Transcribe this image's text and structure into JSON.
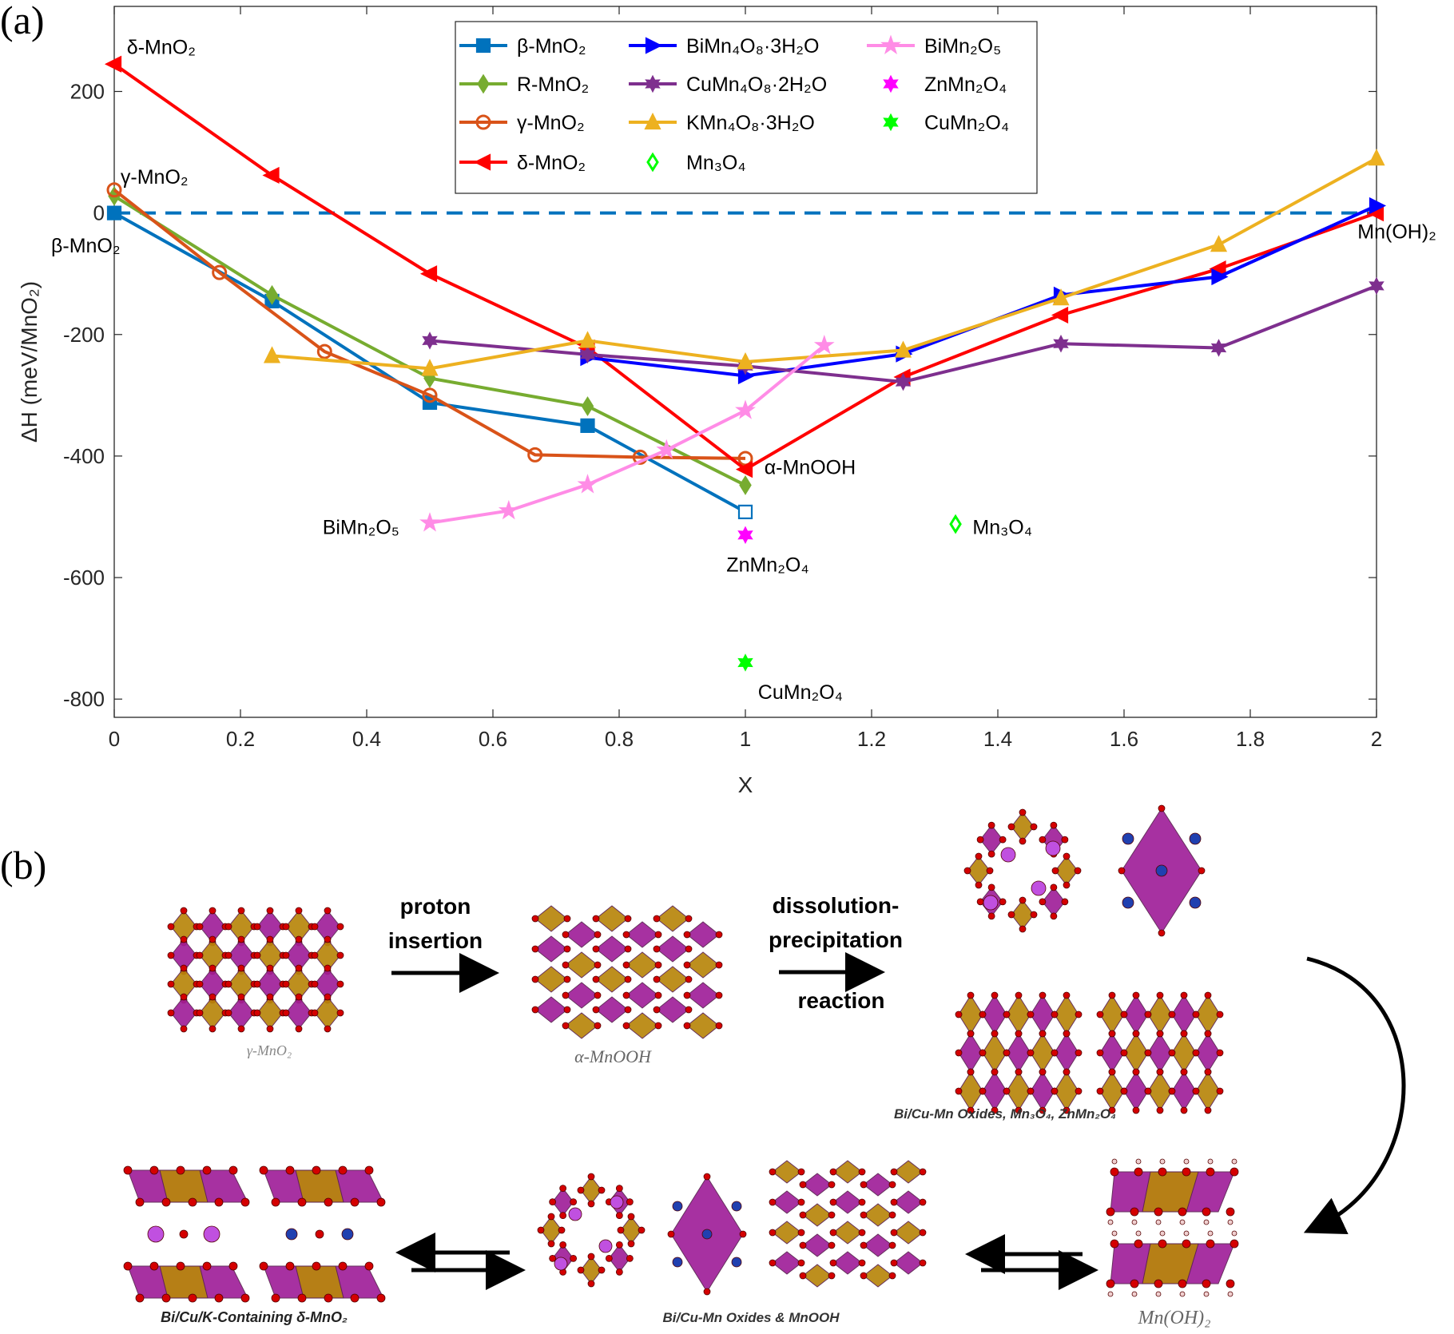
{
  "panel_a_label": "(a)",
  "panel_b_label": "(b)",
  "chart_data": {
    "type": "line",
    "xlabel": "X",
    "ylabel": "ΔH (meV/MnO₂)",
    "xlim": [
      0,
      2
    ],
    "ylim": [
      -830,
      340
    ],
    "xticks": [
      0,
      0.2,
      0.4,
      0.6,
      0.8,
      1,
      1.2,
      1.4,
      1.6,
      1.8,
      2
    ],
    "xtick_labels": [
      "0",
      "0.2",
      "0.4",
      "0.6",
      "0.8",
      "1",
      "1.2",
      "1.4",
      "1.6",
      "1.8",
      "2"
    ],
    "yticks": [
      200,
      0,
      -200,
      -400,
      -600,
      -800
    ],
    "ytick_labels": [
      "200",
      "0",
      "-200",
      "-400",
      "-600",
      "-800"
    ],
    "grid": false,
    "legend_position": "top-center",
    "reference_line": {
      "y": 0,
      "style": "dashed",
      "color": "#0072BD"
    },
    "series": [
      {
        "name": "β-MnO₂",
        "color": "#0072BD",
        "marker": "square",
        "x": [
          0,
          0.25,
          0.5,
          0.75,
          1
        ],
        "y": [
          0,
          -145,
          -312,
          -350,
          -492
        ],
        "open_last": true
      },
      {
        "name": "R-MnO₂",
        "color": "#77AC30",
        "marker": "diamond",
        "x": [
          0,
          0.25,
          0.5,
          0.75,
          1
        ],
        "y": [
          28,
          -135,
          -272,
          -318,
          -448
        ],
        "open_last": false
      },
      {
        "name": "γ-MnO₂",
        "color": "#D95319",
        "marker": "circle",
        "x": [
          0,
          0.1667,
          0.3333,
          0.5,
          0.6667,
          0.8333,
          1
        ],
        "y": [
          38,
          -98,
          -228,
          -300,
          -398,
          -402,
          -404
        ],
        "open_last": false
      },
      {
        "name": "δ-MnO₂",
        "color": "#FF0000",
        "marker": "triangle-left",
        "x": [
          0,
          0.25,
          0.5,
          0.75,
          1,
          1.25,
          1.5,
          1.75,
          2
        ],
        "y": [
          245,
          62,
          -100,
          -222,
          -422,
          -270,
          -168,
          -92,
          0
        ],
        "open_last": false
      },
      {
        "name": "BiMn₄O₈·3H₂O",
        "color": "#0000FF",
        "marker": "triangle-right",
        "x": [
          0.75,
          1,
          1.25,
          1.5,
          1.75,
          2
        ],
        "y": [
          -238,
          -268,
          -232,
          -135,
          -105,
          12
        ],
        "open_last": false
      },
      {
        "name": "CuMn₄O₈·2H₂O",
        "color": "#7E2F8E",
        "marker": "hexagram",
        "x": [
          0.5,
          0.75,
          1,
          1.25,
          1.5,
          1.75,
          2
        ],
        "y": [
          -210,
          -233,
          -252,
          -278,
          -215,
          -222,
          -120
        ],
        "open_last": false
      },
      {
        "name": "KMn₄O₈·3H₂O",
        "color": "#EDB120",
        "marker": "triangle-up",
        "x": [
          0.25,
          0.5,
          0.75,
          1,
          1.25,
          1.5,
          1.75,
          2
        ],
        "y": [
          -235,
          -256,
          -210,
          -245,
          -226,
          -140,
          -52,
          90
        ],
        "open_last": false
      },
      {
        "name": "BiMn₂O₅",
        "color": "#FF8CE6",
        "marker": "pentagram",
        "x": [
          0.5,
          0.625,
          0.75,
          0.875,
          1,
          1.125
        ],
        "y": [
          -510,
          -490,
          -447,
          -390,
          -325,
          -218
        ],
        "open_last": false
      },
      {
        "name": "ZnMn₂O₄",
        "color": "#FF00FF",
        "marker": "hexagram",
        "x": [
          1
        ],
        "y": [
          -530
        ],
        "open_last": false
      },
      {
        "name": "CuMn₂O₄",
        "color": "#00FF00",
        "marker": "hexagram",
        "x": [
          1
        ],
        "y": [
          -740
        ],
        "open_last": false
      },
      {
        "name": "Mn₃O₄",
        "color": "#00FF00",
        "marker": "diamond",
        "x": [
          1.333
        ],
        "y": [
          -512
        ],
        "open_last": false
      }
    ],
    "annotations": [
      {
        "id": "ann-delta",
        "text": "δ-MnO₂",
        "x": 0.02,
        "y": 262
      },
      {
        "id": "ann-gamma",
        "text": "γ-MnO₂",
        "x": 0.01,
        "y": 48
      },
      {
        "id": "ann-beta",
        "text": "β-MnO₂",
        "x": -0.1,
        "y": -65
      },
      {
        "id": "ann-mnoh2",
        "text": "Mn(OH)₂",
        "x": 1.97,
        "y": -42
      },
      {
        "id": "ann-amnooh",
        "text": "α-MnOOH",
        "x": 1.03,
        "y": -430
      },
      {
        "id": "ann-bimn2o5",
        "text": "BiMn₂O₅",
        "x": 0.33,
        "y": -528
      },
      {
        "id": "ann-znmn2o4",
        "text": "ZnMn₂O₄",
        "x": 0.97,
        "y": -590
      },
      {
        "id": "ann-mn3o4",
        "text": "Mn₃O₄",
        "x": 1.36,
        "y": -528
      },
      {
        "id": "ann-cumn2o4",
        "text": "CuMn₂O₄",
        "x": 1.02,
        "y": -800
      }
    ]
  },
  "diagram": {
    "arrow_proton": [
      "proton",
      "insertion"
    ],
    "arrow_dissolution": [
      "dissolution-",
      "precipitation",
      "reaction"
    ],
    "caption_gamma": "γ-MnO₂",
    "caption_amnooh": "α-MnOOH",
    "caption_oxides": "Bi/Cu-Mn Oxides, Mn₃O₄, ZnMn₂O₄",
    "caption_mnoh2": "Mn(OH)₂",
    "caption_mixed": "Bi/Cu-Mn Oxides & MnOOH",
    "caption_delta": "Bi/Cu/K-Containing δ-MnO₂",
    "colors": {
      "mn_octahedron": "#A0209A",
      "octahedron_alt": "#B8860B",
      "oxygen": "#D40000",
      "bismuth": "#C050E0",
      "copper": "#2040B0",
      "hydrogen": "#F0D0D0"
    }
  }
}
